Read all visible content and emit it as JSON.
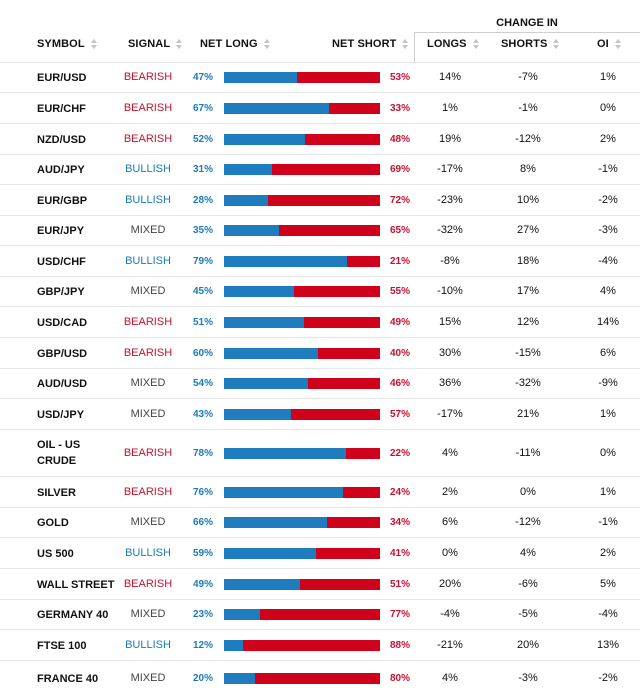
{
  "headers": {
    "symbol": "SYMBOL",
    "signal": "SIGNAL",
    "net_long": "NET LONG",
    "net_short": "NET SHORT",
    "change_in": "CHANGE IN",
    "longs": "LONGS",
    "shorts": "SHORTS",
    "oi": "OI"
  },
  "colors": {
    "bearish": "#c8102e",
    "bullish": "#1c7ab8",
    "mixed": "#444444",
    "long_bar": "#1f7cbf",
    "short_bar": "#d0021b"
  },
  "rows": [
    {
      "symbol": "EUR/USD",
      "signal": "BEARISH",
      "type": "bearish",
      "net_long": "47%",
      "net_short": "53%",
      "long_fraction": 0.47,
      "longs": "14%",
      "shorts": "-7%",
      "oi": "1%"
    },
    {
      "symbol": "EUR/CHF",
      "signal": "BEARISH",
      "type": "bearish",
      "net_long": "67%",
      "net_short": "33%",
      "long_fraction": 0.67,
      "longs": "1%",
      "shorts": "-1%",
      "oi": "0%"
    },
    {
      "symbol": "NZD/USD",
      "signal": "BEARISH",
      "type": "bearish",
      "net_long": "52%",
      "net_short": "48%",
      "long_fraction": 0.52,
      "longs": "19%",
      "shorts": "-12%",
      "oi": "2%"
    },
    {
      "symbol": "AUD/JPY",
      "signal": "BULLISH",
      "type": "bullish",
      "net_long": "31%",
      "net_short": "69%",
      "long_fraction": 0.31,
      "longs": "-17%",
      "shorts": "8%",
      "oi": "-1%"
    },
    {
      "symbol": "EUR/GBP",
      "signal": "BULLISH",
      "type": "bullish",
      "net_long": "28%",
      "net_short": "72%",
      "long_fraction": 0.28,
      "longs": "-23%",
      "shorts": "10%",
      "oi": "-2%"
    },
    {
      "symbol": "EUR/JPY",
      "signal": "MIXED",
      "type": "mixed",
      "net_long": "35%",
      "net_short": "65%",
      "long_fraction": 0.35,
      "longs": "-32%",
      "shorts": "27%",
      "oi": "-3%"
    },
    {
      "symbol": "USD/CHF",
      "signal": "BULLISH",
      "type": "bullish",
      "net_long": "79%",
      "net_short": "21%",
      "long_fraction": 0.79,
      "longs": "-8%",
      "shorts": "18%",
      "oi": "-4%"
    },
    {
      "symbol": "GBP/JPY",
      "signal": "MIXED",
      "type": "mixed",
      "net_long": "45%",
      "net_short": "55%",
      "long_fraction": 0.45,
      "longs": "-10%",
      "shorts": "17%",
      "oi": "4%"
    },
    {
      "symbol": "USD/CAD",
      "signal": "BEARISH",
      "type": "bearish",
      "net_long": "51%",
      "net_short": "49%",
      "long_fraction": 0.51,
      "longs": "15%",
      "shorts": "12%",
      "oi": "14%"
    },
    {
      "symbol": "GBP/USD",
      "signal": "BEARISH",
      "type": "bearish",
      "net_long": "60%",
      "net_short": "40%",
      "long_fraction": 0.6,
      "longs": "30%",
      "shorts": "-15%",
      "oi": "6%"
    },
    {
      "symbol": "AUD/USD",
      "signal": "MIXED",
      "type": "mixed",
      "net_long": "54%",
      "net_short": "46%",
      "long_fraction": 0.54,
      "longs": "36%",
      "shorts": "-32%",
      "oi": "-9%"
    },
    {
      "symbol": "USD/JPY",
      "signal": "MIXED",
      "type": "mixed",
      "net_long": "43%",
      "net_short": "57%",
      "long_fraction": 0.43,
      "longs": "-17%",
      "shorts": "21%",
      "oi": "1%"
    },
    {
      "symbol": "OIL - US CRUDE",
      "signal": "BEARISH",
      "type": "bearish",
      "net_long": "78%",
      "net_short": "22%",
      "long_fraction": 0.78,
      "longs": "4%",
      "shorts": "-11%",
      "oi": "0%"
    },
    {
      "symbol": "SILVER",
      "signal": "BEARISH",
      "type": "bearish",
      "net_long": "76%",
      "net_short": "24%",
      "long_fraction": 0.76,
      "longs": "2%",
      "shorts": "0%",
      "oi": "1%"
    },
    {
      "symbol": "GOLD",
      "signal": "MIXED",
      "type": "mixed",
      "net_long": "66%",
      "net_short": "34%",
      "long_fraction": 0.66,
      "longs": "6%",
      "shorts": "-12%",
      "oi": "-1%"
    },
    {
      "symbol": "US 500",
      "signal": "BULLISH",
      "type": "bullish",
      "net_long": "59%",
      "net_short": "41%",
      "long_fraction": 0.59,
      "longs": "0%",
      "shorts": "4%",
      "oi": "2%"
    },
    {
      "symbol": "WALL STREET",
      "signal": "BEARISH",
      "type": "bearish",
      "net_long": "49%",
      "net_short": "51%",
      "long_fraction": 0.49,
      "longs": "20%",
      "shorts": "-6%",
      "oi": "5%"
    },
    {
      "symbol": "GERMANY 40",
      "signal": "MIXED",
      "type": "mixed",
      "net_long": "23%",
      "net_short": "77%",
      "long_fraction": 0.23,
      "longs": "-4%",
      "shorts": "-5%",
      "oi": "-4%"
    },
    {
      "symbol": "FTSE 100",
      "signal": "BULLISH",
      "type": "bullish",
      "net_long": "12%",
      "net_short": "88%",
      "long_fraction": 0.12,
      "longs": "-21%",
      "shorts": "20%",
      "oi": "13%"
    },
    {
      "symbol": "FRANCE 40",
      "signal": "MIXED",
      "type": "mixed",
      "net_long": "20%",
      "net_short": "80%",
      "long_fraction": 0.2,
      "longs": "4%",
      "shorts": "-3%",
      "oi": "-2%"
    }
  ]
}
